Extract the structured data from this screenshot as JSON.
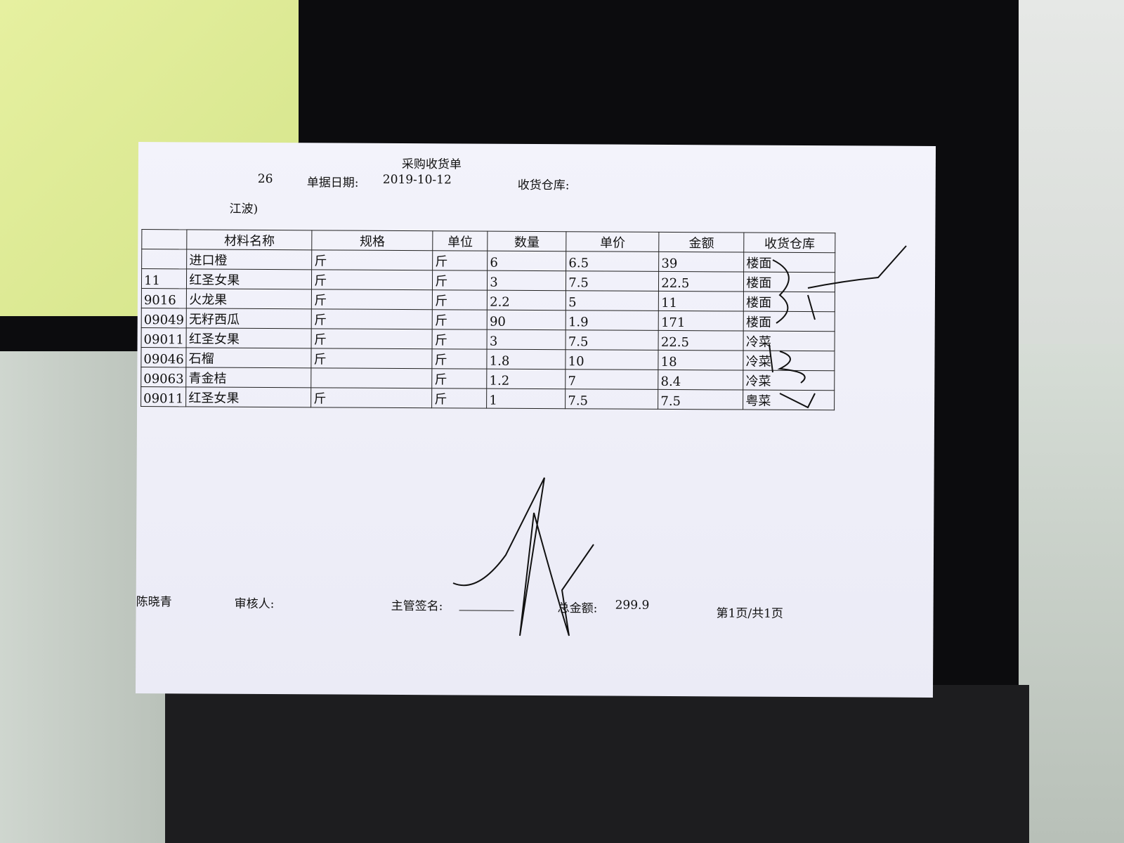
{
  "document": {
    "title": "采购收货单",
    "doc_number_fragment": "26",
    "date_label": "单据日期:",
    "date_value": "2019-10-12",
    "warehouse_label": "收货仓库:",
    "supplier_fragment": "江波)"
  },
  "table": {
    "headers": [
      "",
      "材料名称",
      "规格",
      "单位",
      "数量",
      "单价",
      "金额",
      "收货仓库"
    ],
    "rows": [
      {
        "code": "",
        "name": "进口橙",
        "spec": "斤",
        "unit": "斤",
        "qty": "6",
        "price": "6.5",
        "amount": "39",
        "warehouse": "楼面"
      },
      {
        "code": "11",
        "name": "红圣女果",
        "spec": "斤",
        "unit": "斤",
        "qty": "3",
        "price": "7.5",
        "amount": "22.5",
        "warehouse": "楼面"
      },
      {
        "code": "9016",
        "name": "火龙果",
        "spec": "斤",
        "unit": "斤",
        "qty": "2.2",
        "price": "5",
        "amount": "11",
        "warehouse": "楼面"
      },
      {
        "code": "09049",
        "name": "无籽西瓜",
        "spec": "斤",
        "unit": "斤",
        "qty": "90",
        "price": "1.9",
        "amount": "171",
        "warehouse": "楼面"
      },
      {
        "code": "09011",
        "name": "红圣女果",
        "spec": "斤",
        "unit": "斤",
        "qty": "3",
        "price": "7.5",
        "amount": "22.5",
        "warehouse": "冷菜"
      },
      {
        "code": "09046",
        "name": "石榴",
        "spec": "斤",
        "unit": "斤",
        "qty": "1.8",
        "price": "10",
        "amount": "18",
        "warehouse": "冷菜"
      },
      {
        "code": "09063",
        "name": "青金桔",
        "spec": "",
        "unit": "斤",
        "qty": "1.2",
        "price": "7",
        "amount": "8.4",
        "warehouse": "冷菜"
      },
      {
        "code": "09011",
        "name": "红圣女果",
        "spec": "斤",
        "unit": "斤",
        "qty": "1",
        "price": "7.5",
        "amount": "7.5",
        "warehouse": "粤菜"
      }
    ]
  },
  "footer": {
    "preparer": "陈晓青",
    "reviewer_label": "审核人:",
    "supervisor_label": "主管签名:",
    "total_label": "总金额:",
    "total_value": "299.9",
    "page": "第1页/共1页"
  }
}
